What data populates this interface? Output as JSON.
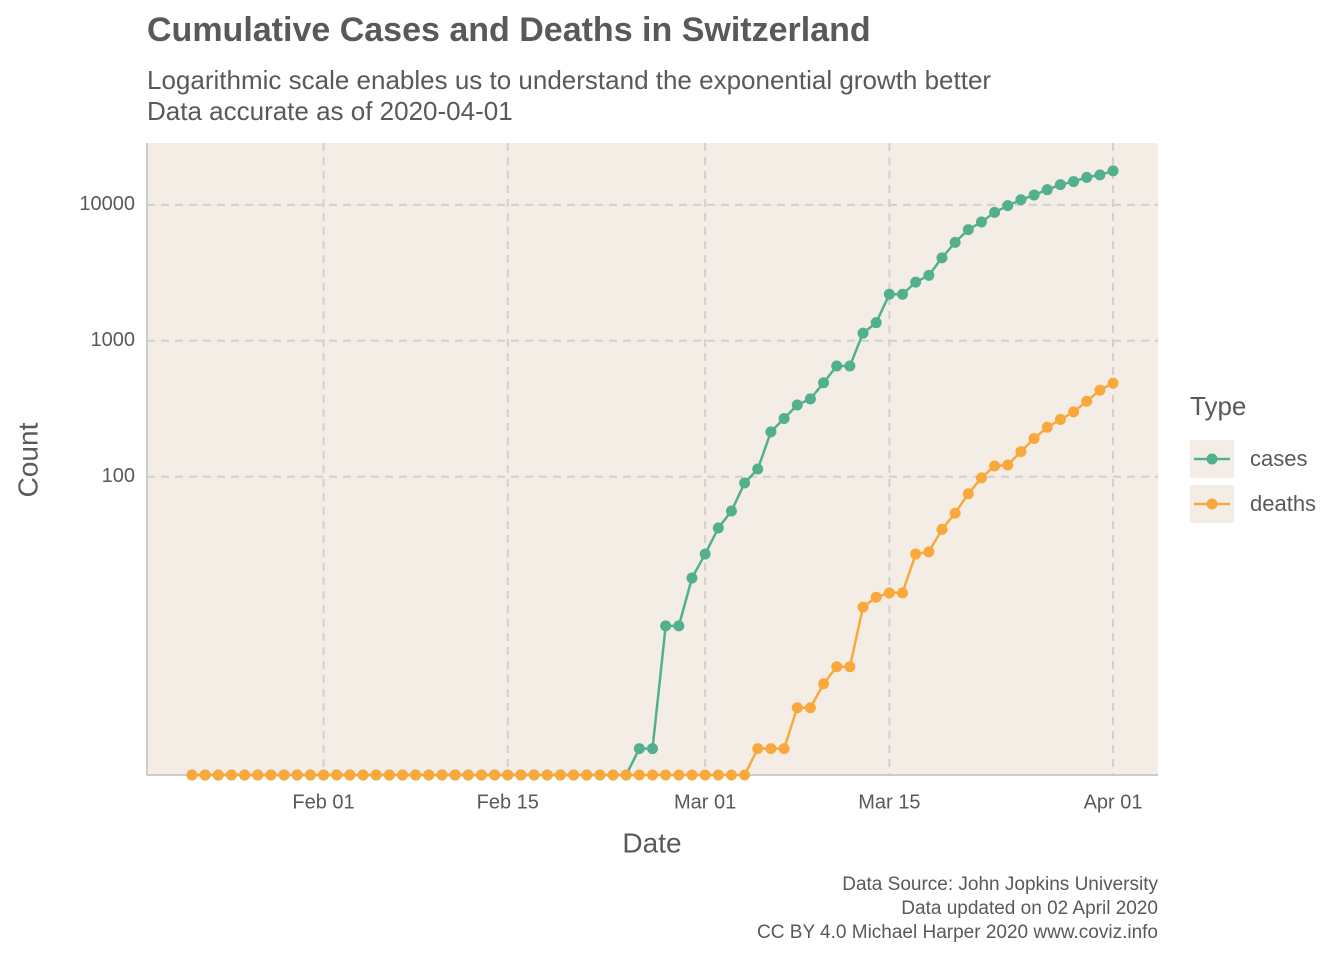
{
  "chart_data": {
    "type": "line",
    "title": "Cumulative Cases and Deaths in Switzerland",
    "subtitle": [
      "Logarithmic scale enables us to understand the exponential growth better",
      "Data accurate as of 2020-04-01"
    ],
    "xlabel": "Date",
    "ylabel": "Count",
    "legend_title": "Type",
    "legend": "right",
    "caption": [
      "Data Source: John Jopkins University",
      "Data updated on 02 April 2020",
      "CC BY 4.0 Michael Harper 2020 www.coviz.info"
    ],
    "ylog": true,
    "grid": true,
    "x": [
      "2020-01-22",
      "2020-01-23",
      "2020-01-24",
      "2020-01-25",
      "2020-01-26",
      "2020-01-27",
      "2020-01-28",
      "2020-01-29",
      "2020-01-30",
      "2020-01-31",
      "2020-02-01",
      "2020-02-02",
      "2020-02-03",
      "2020-02-04",
      "2020-02-05",
      "2020-02-06",
      "2020-02-07",
      "2020-02-08",
      "2020-02-09",
      "2020-02-10",
      "2020-02-11",
      "2020-02-12",
      "2020-02-13",
      "2020-02-14",
      "2020-02-15",
      "2020-02-16",
      "2020-02-17",
      "2020-02-18",
      "2020-02-19",
      "2020-02-20",
      "2020-02-21",
      "2020-02-22",
      "2020-02-23",
      "2020-02-24",
      "2020-02-25",
      "2020-02-26",
      "2020-02-27",
      "2020-02-28",
      "2020-02-29",
      "2020-03-01",
      "2020-03-02",
      "2020-03-03",
      "2020-03-04",
      "2020-03-05",
      "2020-03-06",
      "2020-03-07",
      "2020-03-08",
      "2020-03-09",
      "2020-03-10",
      "2020-03-11",
      "2020-03-12",
      "2020-03-13",
      "2020-03-14",
      "2020-03-15",
      "2020-03-16",
      "2020-03-17",
      "2020-03-18",
      "2020-03-19",
      "2020-03-20",
      "2020-03-21",
      "2020-03-22",
      "2020-03-23",
      "2020-03-24",
      "2020-03-25",
      "2020-03-26",
      "2020-03-27",
      "2020-03-28",
      "2020-03-29",
      "2020-03-30",
      "2020-03-31",
      "2020-04-01"
    ],
    "series": [
      {
        "name": "cases",
        "color": "#52b08f",
        "values": [
          0,
          0,
          0,
          0,
          0,
          0,
          0,
          0,
          0,
          0,
          0,
          0,
          0,
          0,
          0,
          0,
          0,
          0,
          0,
          0,
          0,
          0,
          0,
          0,
          0,
          0,
          0,
          0,
          0,
          0,
          0,
          0,
          0,
          0,
          1,
          1,
          8,
          8,
          18,
          27,
          42,
          56,
          90,
          114,
          214,
          268,
          337,
          374,
          491,
          652,
          652,
          1139,
          1359,
          2200,
          2200,
          2700,
          3028,
          4075,
          5294,
          6575,
          7474,
          8795,
          9877,
          10897,
          11811,
          12928,
          14076,
          14829,
          15922,
          16605,
          17768
        ]
      },
      {
        "name": "deaths",
        "color": "#f9a93c",
        "values": [
          0,
          0,
          0,
          0,
          0,
          0,
          0,
          0,
          0,
          0,
          0,
          0,
          0,
          0,
          0,
          0,
          0,
          0,
          0,
          0,
          0,
          0,
          0,
          0,
          0,
          0,
          0,
          0,
          0,
          0,
          0,
          0,
          0,
          0,
          0,
          0,
          0,
          0,
          0,
          0,
          0,
          0,
          0,
          1,
          1,
          1,
          2,
          2,
          3,
          4,
          4,
          11,
          13,
          14,
          14,
          27,
          28,
          41,
          54,
          75,
          98,
          120,
          122,
          153,
          191,
          231,
          264,
          300,
          359,
          433,
          488
        ]
      }
    ],
    "xlim": [
      "2020-01-18T14:00:00Z",
      "2020-04-04T10:00:00Z"
    ],
    "xticks": [
      {
        "value": "2020-02-01",
        "label": "Feb 01"
      },
      {
        "value": "2020-02-15",
        "label": "Feb 15"
      },
      {
        "value": "2020-03-01",
        "label": "Mar 01"
      },
      {
        "value": "2020-03-15",
        "label": "Mar 15"
      },
      {
        "value": "2020-04-01",
        "label": "Apr 01"
      }
    ],
    "ylim": [
      0.64,
      28500
    ],
    "yticks": [
      100,
      1000,
      10000
    ]
  }
}
